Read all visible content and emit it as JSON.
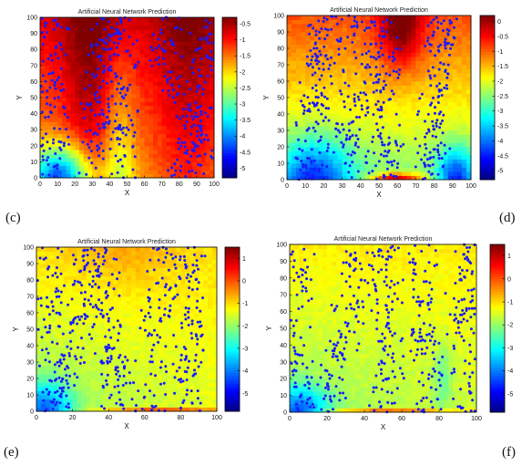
{
  "chart_data": [
    {
      "panel_label": "(c)",
      "type": "heatmap",
      "title": "Artificial Neural Network Prediction",
      "xlabel": "X",
      "ylabel": "Y",
      "xlim": [
        0,
        100
      ],
      "ylim": [
        0,
        100
      ],
      "x_ticks": [
        "0",
        "10",
        "20",
        "30",
        "40",
        "50",
        "60",
        "70",
        "80",
        "90",
        "100"
      ],
      "y_ticks": [
        "0",
        "10",
        "20",
        "30",
        "40",
        "50",
        "60",
        "70",
        "80",
        "90",
        "100"
      ],
      "colorbar_range": [
        -5.3,
        -0.3
      ],
      "colorbar_ticks": [
        "-0.5",
        "-1",
        "-1.5",
        "-2",
        "-2.5",
        "-3",
        "-3.5",
        "-4",
        "-4.5",
        "-5"
      ],
      "overlay": "blue scatter points",
      "colormap": "jet"
    },
    {
      "panel_label": "(d)",
      "type": "heatmap",
      "title": "Artificial Neural Network Prediction",
      "xlabel": "X",
      "ylabel": "Y",
      "xlim": [
        0,
        100
      ],
      "ylim": [
        0,
        100
      ],
      "x_ticks": [
        "0",
        "10",
        "20",
        "30",
        "40",
        "50",
        "60",
        "70",
        "80",
        "90",
        "100"
      ],
      "y_ticks": [
        "0",
        "10",
        "20",
        "30",
        "40",
        "50",
        "60",
        "70",
        "80",
        "90",
        "100"
      ],
      "colorbar_range": [
        -5.3,
        0.2
      ],
      "colorbar_ticks": [
        "0",
        "-0.5",
        "-1",
        "-1.5",
        "-2",
        "-2.5",
        "-3",
        "-3.5",
        "-4",
        "-4.5",
        "-5"
      ],
      "overlay": "blue scatter points",
      "colormap": "jet"
    },
    {
      "panel_label": "(e)",
      "type": "heatmap",
      "title": "Artificial Neural Network Prediction",
      "xlabel": "X",
      "ylabel": "Y",
      "xlim": [
        0,
        100
      ],
      "ylim": [
        0,
        100
      ],
      "x_ticks": [
        "0",
        "20",
        "40",
        "60",
        "80",
        "100"
      ],
      "y_ticks": [
        "0",
        "10",
        "20",
        "30",
        "40",
        "50",
        "60",
        "70",
        "80",
        "90",
        "100"
      ],
      "colorbar_range": [
        -5.8,
        1.5
      ],
      "colorbar_ticks": [
        "1",
        "0",
        "-1",
        "-2",
        "-3",
        "-4",
        "-5"
      ],
      "overlay": "blue scatter points",
      "colormap": "jet"
    },
    {
      "panel_label": "(f)",
      "type": "heatmap",
      "title": "Artificial Neural Network Prediction",
      "xlabel": "X",
      "ylabel": "Y",
      "xlim": [
        0,
        100
      ],
      "ylim": [
        0,
        100
      ],
      "x_ticks": [
        "0",
        "20",
        "40",
        "60",
        "80",
        "100"
      ],
      "y_ticks": [
        "0",
        "10",
        "20",
        "30",
        "40",
        "50",
        "60",
        "70",
        "80",
        "90",
        "100"
      ],
      "colorbar_range": [
        -5.8,
        1.5
      ],
      "colorbar_ticks": [
        "1",
        "0",
        "-1",
        "-2",
        "-3",
        "-4",
        "-5"
      ],
      "overlay": "blue scatter points",
      "colormap": "jet"
    }
  ]
}
